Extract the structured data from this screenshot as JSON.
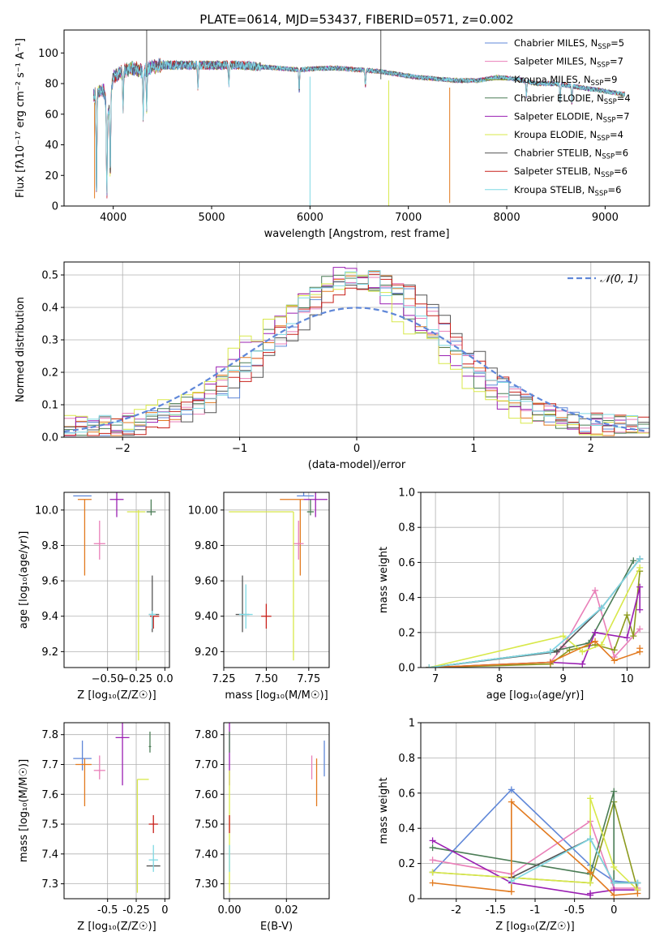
{
  "figure": {
    "title": "PLATE=0614, MJD=53437, FIBERID=0571, z=0.002"
  },
  "colors": {
    "Chabrier MILES": "#5f87d8",
    "Salpeter MILES": "#e97fb8",
    "Kroupa MILES": "#8c9a1e",
    "Chabrier ELODIE": "#4b7d56",
    "Salpeter ELODIE": "#9a1fb2",
    "Kroupa ELODIE": "#d8e84a",
    "Chabrier STELIB": "#555555",
    "Salpeter STELIB": "#c8201a",
    "Kroupa STELIB": "#7fd8e3",
    "orange": "#e27a1f",
    "normal": "#5f87d8"
  },
  "legend1": [
    {
      "label": "Chabrier MILES, N",
      "sub": "SSP",
      "tail": "=5"
    },
    {
      "label": "Salpeter MILES, N",
      "sub": "SSP",
      "tail": "=7"
    },
    {
      "label": "Kroupa MILES, N",
      "sub": "SSP",
      "tail": "=9"
    },
    {
      "label": "Chabrier ELODIE, N",
      "sub": "SSP",
      "tail": "=4"
    },
    {
      "label": "Salpeter ELODIE, N",
      "sub": "SSP",
      "tail": "=7"
    },
    {
      "label": "Kroupa ELODIE, N",
      "sub": "SSP",
      "tail": "=4"
    },
    {
      "label": "Chabrier STELIB, N",
      "sub": "SSP",
      "tail": "=6"
    },
    {
      "label": "Salpeter STELIB, N",
      "sub": "SSP",
      "tail": "=6"
    },
    {
      "label": "Kroupa STELIB, N",
      "sub": "SSP",
      "tail": "=6"
    }
  ],
  "legend2": "𝒩(0, 1)",
  "chart_data": [
    {
      "id": "spectrum",
      "type": "line",
      "xlabel": "wavelength [Angstrom, rest frame]",
      "ylabel": "Flux [fλ10⁻¹⁷ erg cm⁻² s⁻¹ A⁻¹]",
      "xlim": [
        3500,
        9450
      ],
      "ylim": [
        0,
        115
      ],
      "xticks": [
        4000,
        5000,
        6000,
        7000,
        8000,
        9000
      ],
      "yticks": [
        0,
        20,
        40,
        60,
        80,
        100
      ],
      "grid": false,
      "legend": "top-right",
      "continuum": {
        "x": [
          3800,
          3850,
          3900,
          3950,
          4000,
          4100,
          4200,
          4300,
          4400,
          4500,
          4700,
          4900,
          5100,
          5300,
          5500,
          5700,
          5900,
          6100,
          6300,
          6500,
          6700,
          6900,
          7100,
          7300,
          7500,
          7700,
          7900,
          8100,
          8300,
          8500,
          8700,
          8900,
          9100,
          9200
        ],
        "y": [
          72,
          75,
          76,
          60,
          84,
          88,
          90,
          88,
          91,
          92,
          92,
          92,
          92,
          92,
          91,
          90,
          89,
          90,
          90,
          89,
          88,
          86,
          84,
          83,
          82,
          82,
          84,
          83,
          80,
          80,
          78,
          76,
          74,
          73
        ]
      },
      "features": [
        {
          "x": 3830,
          "depth": 70
        },
        {
          "x": 3935,
          "depth": 60
        },
        {
          "x": 3970,
          "depth": 50
        },
        {
          "x": 4100,
          "depth": 25
        },
        {
          "x": 4305,
          "depth": 30
        },
        {
          "x": 4340,
          "depth": 25
        },
        {
          "x": 4861,
          "depth": 15
        },
        {
          "x": 5175,
          "depth": 12
        },
        {
          "x": 5890,
          "depth": 15
        },
        {
          "x": 6563,
          "depth": 10
        },
        {
          "x": 8200,
          "depth": 10
        },
        {
          "x": 8542,
          "depth": 12
        },
        {
          "x": 8662,
          "depth": 12
        }
      ],
      "spikes": [
        {
          "x": 6000,
          "y": 0,
          "color": "Kroupa STELIB"
        },
        {
          "x": 6800,
          "y": 0,
          "color": "Kroupa ELODIE"
        },
        {
          "x": 7420,
          "y": 2,
          "color": "orange"
        },
        {
          "x": 3810,
          "y": 5,
          "color": "orange"
        },
        {
          "x": 6720,
          "y": 115,
          "color": "Chabrier STELIB"
        },
        {
          "x": 4340,
          "y": 115,
          "color": "Chabrier STELIB"
        }
      ]
    },
    {
      "id": "residuals",
      "type": "step",
      "xlabel": "(data-model)/error",
      "ylabel": "Normed distribution",
      "xlim": [
        -2.5,
        2.5
      ],
      "ylim": [
        0,
        0.54
      ],
      "xticks": [
        -2,
        -1,
        0,
        1,
        2
      ],
      "yticks": [
        0.0,
        0.1,
        0.2,
        0.3,
        0.4,
        0.5
      ],
      "grid": true,
      "legend": "top-right",
      "normal": {
        "mu": 0,
        "sigma": 1
      }
    },
    {
      "id": "age-vs-Z",
      "type": "errorbar",
      "xlabel": "Z [log₁₀(Z/Z☉)]",
      "ylabel": "age  [log₁₀(age/yr)]",
      "xlim": [
        -0.88,
        0.04
      ],
      "ylim": [
        9.11,
        10.1
      ],
      "xticks": [
        -0.5,
        -0.25,
        0.0
      ],
      "yticks": [
        9.2,
        9.4,
        9.6,
        9.8,
        10.0
      ],
      "grid": true,
      "points": [
        {
          "x": -0.72,
          "y": 10.08,
          "xl": 0.08,
          "xr": 0.08,
          "yl": 0,
          "yh": 0,
          "color": "Chabrier MILES"
        },
        {
          "x": -0.7,
          "y": 10.06,
          "xl": 0.06,
          "xr": 0.06,
          "yl": 0.43,
          "yh": 0.0,
          "color": "orange"
        },
        {
          "x": -0.57,
          "y": 9.81,
          "xl": 0.05,
          "xr": 0.05,
          "yl": 0.09,
          "yh": 0.13,
          "color": "Salpeter MILES"
        },
        {
          "x": -0.42,
          "y": 10.06,
          "xl": 0.06,
          "xr": 0.06,
          "yl": 0.1,
          "yh": 0.04,
          "color": "Salpeter ELODIE"
        },
        {
          "x": -0.23,
          "y": 9.99,
          "xl": 0.1,
          "xr": 0.06,
          "yl": 0.84,
          "yh": 0.01,
          "color": "Kroupa ELODIE"
        },
        {
          "x": -0.12,
          "y": 9.99,
          "xl": 0.04,
          "xr": 0.04,
          "yl": 0.02,
          "yh": 0.07,
          "color": "Chabrier ELODIE"
        },
        {
          "x": -0.11,
          "y": 9.41,
          "xl": 0.03,
          "xr": 0.06,
          "yl": 0.1,
          "yh": 0.22,
          "color": "Chabrier STELIB"
        },
        {
          "x": -0.1,
          "y": 9.4,
          "xl": 0.03,
          "xr": 0.05,
          "yl": 0.07,
          "yh": 0.0,
          "color": "Salpeter STELIB"
        },
        {
          "x": -0.11,
          "y": 9.41,
          "xl": 0.03,
          "xr": 0.03,
          "yl": 0.08,
          "yh": 0.02,
          "color": "Kroupa STELIB"
        }
      ]
    },
    {
      "id": "age-vs-mass",
      "type": "errorbar",
      "xlabel": "mass [log₁₀(M/M☉)]",
      "ylabel": "",
      "xlim": [
        7.25,
        7.87
      ],
      "ylim": [
        9.11,
        10.1
      ],
      "xticks": [
        7.25,
        7.5,
        7.75
      ],
      "yticks": [
        9.2,
        9.4,
        9.6,
        9.8,
        10.0
      ],
      "grid": true,
      "points": [
        {
          "x": 7.72,
          "y": 10.08,
          "xl": 0.04,
          "xr": 0.06,
          "yl": 0,
          "yh": 0.02,
          "color": "Chabrier MILES"
        },
        {
          "x": 7.7,
          "y": 10.06,
          "xl": 0.12,
          "xr": 0.02,
          "yl": 0.43,
          "yh": 0,
          "color": "orange"
        },
        {
          "x": 7.69,
          "y": 9.81,
          "xl": 0.03,
          "xr": 0.03,
          "yl": 0.09,
          "yh": 0.13,
          "color": "Salpeter MILES"
        },
        {
          "x": 7.79,
          "y": 10.06,
          "xl": 0.07,
          "xr": 0.07,
          "yl": 0.1,
          "yh": 0.04,
          "color": "Salpeter ELODIE"
        },
        {
          "x": 7.66,
          "y": 9.99,
          "xl": 0.38,
          "xr": 0.0,
          "yl": 0.84,
          "yh": 0.0,
          "color": "Kroupa ELODIE"
        },
        {
          "x": 7.76,
          "y": 9.99,
          "xl": 0.02,
          "xr": 0.02,
          "yl": 0.02,
          "yh": 0.07,
          "color": "Chabrier ELODIE"
        },
        {
          "x": 7.36,
          "y": 9.41,
          "xl": 0.04,
          "xr": 0.04,
          "yl": 0.1,
          "yh": 0.22,
          "color": "Chabrier STELIB"
        },
        {
          "x": 7.5,
          "y": 9.4,
          "xl": 0.03,
          "xr": 0.03,
          "yl": 0.07,
          "yh": 0.07,
          "color": "Salpeter STELIB"
        },
        {
          "x": 7.38,
          "y": 9.41,
          "xl": 0.04,
          "xr": 0.04,
          "yl": 0.08,
          "yh": 0.17,
          "color": "Kroupa STELIB"
        }
      ]
    },
    {
      "id": "weight-vs-age",
      "type": "line",
      "xlabel": "age  [log₁₀(age/yr)]",
      "ylabel": "mass weight",
      "xlim": [
        6.77,
        10.35
      ],
      "ylim": [
        0,
        1.0
      ],
      "xticks": [
        7,
        8,
        9,
        10
      ],
      "yticks": [
        0.0,
        0.2,
        0.4,
        0.6,
        0.8,
        1.0
      ],
      "grid": true,
      "series": [
        {
          "color": "Chabrier MILES",
          "x": [
            6.9,
            8.8,
            9.6,
            10.2
          ],
          "y": [
            0.0,
            0.09,
            0.34,
            0.62
          ]
        },
        {
          "color": "Salpeter MILES",
          "x": [
            6.9,
            8.8,
            9.0,
            9.5,
            9.8,
            10.2
          ],
          "y": [
            0.0,
            0.03,
            0.12,
            0.44,
            0.06,
            0.22
          ]
        },
        {
          "color": "Kroupa MILES",
          "x": [
            6.9,
            8.8,
            9.1,
            9.5,
            9.8,
            10.0,
            10.1,
            10.2
          ],
          "y": [
            0.0,
            0.02,
            0.1,
            0.13,
            0.1,
            0.3,
            0.18,
            0.55
          ]
        },
        {
          "color": "Chabrier ELODIE",
          "x": [
            6.9,
            8.8,
            9.4,
            10.1
          ],
          "y": [
            0.0,
            0.09,
            0.14,
            0.61
          ]
        },
        {
          "color": "Salpeter ELODIE",
          "x": [
            6.9,
            8.8,
            9.3,
            9.5,
            10.0,
            10.2,
            10.2
          ],
          "y": [
            0.0,
            0.03,
            0.02,
            0.2,
            0.17,
            0.46,
            0.33
          ]
        },
        {
          "color": "Kroupa ELODIE",
          "x": [
            6.9,
            9.0,
            9.3,
            9.6,
            10.2
          ],
          "y": [
            0.0,
            0.18,
            0.09,
            0.13,
            0.57
          ]
        },
        {
          "color": "Chabrier STELIB",
          "x": [
            6.9,
            8.9,
            9.6,
            10.2
          ],
          "y": [
            0.0,
            0.09,
            0.34,
            0.62
          ]
        },
        {
          "color": "orange",
          "x": [
            6.9,
            8.8,
            9.5,
            9.8,
            10.2,
            10.2
          ],
          "y": [
            0.0,
            0.03,
            0.15,
            0.04,
            0.09,
            0.11
          ]
        },
        {
          "color": "Kroupa STELIB",
          "x": [
            6.9,
            8.8,
            9.6,
            10.2
          ],
          "y": [
            0.0,
            0.09,
            0.34,
            0.62
          ]
        }
      ]
    },
    {
      "id": "mass-vs-Z",
      "type": "errorbar",
      "xlabel": "Z [log₁₀(Z/Z☉)]",
      "ylabel": "mass [log₁₀(M/M☉)]",
      "xlim": [
        -0.88,
        0.04
      ],
      "ylim": [
        7.25,
        7.84
      ],
      "xticks": [
        -0.5,
        -0.25,
        0.0
      ],
      "yticks": [
        7.3,
        7.4,
        7.5,
        7.6,
        7.7,
        7.8
      ],
      "grid": true,
      "points": [
        {
          "x": -0.72,
          "y": 7.72,
          "xl": 0.08,
          "xr": 0.08,
          "yl": 0.04,
          "yh": 0.06,
          "color": "Chabrier MILES"
        },
        {
          "x": -0.7,
          "y": 7.7,
          "xl": 0.08,
          "xr": 0.06,
          "yl": 0.14,
          "yh": 0.02,
          "color": "orange"
        },
        {
          "x": -0.57,
          "y": 7.68,
          "xl": 0.05,
          "xr": 0.05,
          "yl": 0.03,
          "yh": 0.05,
          "color": "Salpeter MILES"
        },
        {
          "x": -0.37,
          "y": 7.79,
          "xl": 0.06,
          "xr": 0.06,
          "yl": 0.16,
          "yh": 0.06,
          "color": "Salpeter ELODIE"
        },
        {
          "x": -0.24,
          "y": 7.65,
          "xl": 0.0,
          "xr": 0.1,
          "yl": 0.38,
          "yh": 0.0,
          "color": "Kroupa ELODIE"
        },
        {
          "x": -0.13,
          "y": 7.76,
          "xl": 0.01,
          "xr": 0.01,
          "yl": 0.02,
          "yh": 0.05,
          "color": "Chabrier ELODIE"
        },
        {
          "x": -0.1,
          "y": 7.36,
          "xl": 0.06,
          "xr": 0.06,
          "yl": 0.0,
          "yh": 0.0,
          "color": "Chabrier STELIB"
        },
        {
          "x": -0.1,
          "y": 7.5,
          "xl": 0.04,
          "xr": 0.04,
          "yl": 0.03,
          "yh": 0.03,
          "color": "Salpeter STELIB"
        },
        {
          "x": -0.1,
          "y": 7.38,
          "xl": 0.04,
          "xr": 0.04,
          "yl": 0.04,
          "yh": 0.05,
          "color": "Kroupa STELIB"
        }
      ]
    },
    {
      "id": "mass-vs-EBV",
      "type": "errorbar",
      "xlabel": "E(B-V)",
      "ylabel": "",
      "xlim": [
        -0.002,
        0.035
      ],
      "ylim": [
        7.25,
        7.84
      ],
      "xticks": [
        0.0,
        0.02
      ],
      "yticks": [
        7.3,
        7.4,
        7.5,
        7.6,
        7.7,
        7.8
      ],
      "grid": true,
      "points": [
        {
          "x": 0.0,
          "y": 7.79,
          "xl": 0,
          "xr": 0,
          "yl": 0.16,
          "yh": 0.06,
          "color": "Salpeter ELODIE"
        },
        {
          "x": 0.0,
          "y": 7.65,
          "xl": 0,
          "xr": 0,
          "yl": 0.38,
          "yh": 0.03,
          "color": "Kroupa ELODIE"
        },
        {
          "x": 0.0,
          "y": 7.5,
          "xl": 0,
          "xr": 0,
          "yl": 0.03,
          "yh": 0.03,
          "color": "Salpeter STELIB"
        },
        {
          "x": 0.0,
          "y": 7.38,
          "xl": 0,
          "xr": 0,
          "yl": 0.04,
          "yh": 0.05,
          "color": "Kroupa STELIB"
        },
        {
          "x": 0.0,
          "y": 7.36,
          "xl": 0,
          "xr": 0,
          "yl": 0.0,
          "yh": 0.0,
          "color": "Chabrier STELIB"
        },
        {
          "x": 0.0,
          "y": 7.76,
          "xl": 0,
          "xr": 0,
          "yl": 0.02,
          "yh": 0.05,
          "color": "Chabrier ELODIE"
        },
        {
          "x": 0.0333,
          "y": 7.72,
          "xl": 0,
          "xr": 0,
          "yl": 0.06,
          "yh": 0.06,
          "color": "Chabrier MILES"
        },
        {
          "x": 0.0289,
          "y": 7.68,
          "xl": 0,
          "xr": 0,
          "yl": 0.03,
          "yh": 0.05,
          "color": "Salpeter MILES"
        },
        {
          "x": 0.0306,
          "y": 7.7,
          "xl": 0,
          "xr": 0,
          "yl": 0.14,
          "yh": 0.02,
          "color": "orange"
        }
      ]
    },
    {
      "id": "weight-vs-Z",
      "type": "line",
      "xlabel": "Z [log₁₀(Z/Z☉)]",
      "ylabel": "mass weight",
      "xlim": [
        -2.45,
        0.45
      ],
      "ylim": [
        0,
        1.0
      ],
      "xticks": [
        -2.0,
        -1.5,
        -1.0,
        -0.5,
        0.0
      ],
      "yticks": [
        0.0,
        0.2,
        0.4,
        0.6,
        0.8,
        1.0
      ],
      "grid": true,
      "series": [
        {
          "color": "Chabrier MILES",
          "x": [
            -2.3,
            -1.3,
            -0.3,
            0.0,
            0.3
          ],
          "y": [
            0.15,
            0.62,
            0.19,
            0.1,
            0.09
          ]
        },
        {
          "color": "Salpeter MILES",
          "x": [
            -2.3,
            -1.3,
            -0.3,
            0.0,
            0.3
          ],
          "y": [
            0.22,
            0.14,
            0.44,
            0.06,
            0.06
          ]
        },
        {
          "color": "Kroupa MILES",
          "x": [
            -2.3,
            -1.3,
            -0.3,
            0.0,
            0.3
          ],
          "y": [
            0.15,
            0.12,
            0.09,
            0.55,
            0.05
          ]
        },
        {
          "color": "Chabrier ELODIE",
          "x": [
            -2.3,
            -0.3,
            0.0,
            0.0,
            0.3
          ],
          "y": [
            0.29,
            0.14,
            0.61,
            0.09,
            0.09
          ]
        },
        {
          "color": "Salpeter ELODIE",
          "x": [
            -2.3,
            -1.3,
            -0.3,
            -0.3,
            0.0,
            0.3
          ],
          "y": [
            0.33,
            0.09,
            0.02,
            0.03,
            0.05,
            0.05
          ]
        },
        {
          "color": "Kroupa ELODIE",
          "x": [
            -2.3,
            -0.3,
            -0.3,
            0.0,
            0.3
          ],
          "y": [
            0.15,
            0.09,
            0.57,
            0.18,
            0.05
          ]
        },
        {
          "color": "Chabrier STELIB",
          "x": [
            -1.3,
            -0.3,
            0.0,
            0.3
          ],
          "y": [
            0.12,
            0.34,
            0.09,
            0.09
          ]
        },
        {
          "color": "orange",
          "x": [
            -2.3,
            -1.3,
            -1.3,
            -0.3,
            0.0,
            0.3
          ],
          "y": [
            0.09,
            0.04,
            0.55,
            0.15,
            0.02,
            0.03
          ]
        },
        {
          "color": "Kroupa STELIB",
          "x": [
            -1.3,
            -0.3,
            0.0,
            0.3
          ],
          "y": [
            0.1,
            0.34,
            0.09,
            0.09
          ]
        }
      ]
    }
  ]
}
